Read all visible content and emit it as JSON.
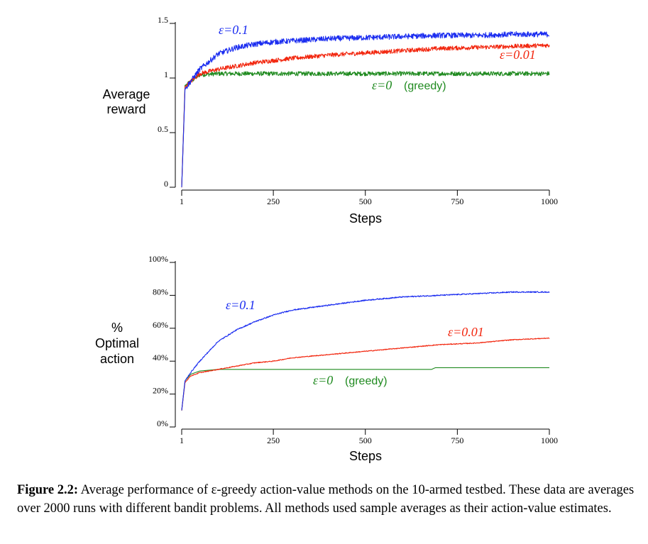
{
  "colors": {
    "eps_0_1": "#1a2cf0",
    "eps_0_01": "#f2260e",
    "eps_0": "#1f8a1f"
  },
  "chart_data": [
    {
      "type": "line",
      "ylabel": [
        "Average",
        "reward"
      ],
      "xlabel": "Steps",
      "xlim": [
        1,
        1000
      ],
      "ylim": [
        0,
        1.5
      ],
      "x_ticks": [
        "1",
        "250",
        "500",
        "750",
        "1000"
      ],
      "y_ticks": [
        "0",
        "0.5",
        "1",
        "1.5"
      ],
      "series": [
        {
          "name": "ε=0.1",
          "x": [
            1,
            10,
            50,
            100,
            150,
            200,
            250,
            300,
            400,
            500,
            600,
            700,
            800,
            900,
            1000
          ],
          "y": [
            0.0,
            0.9,
            1.08,
            1.22,
            1.28,
            1.31,
            1.33,
            1.34,
            1.36,
            1.37,
            1.38,
            1.39,
            1.39,
            1.4,
            1.4
          ]
        },
        {
          "name": "ε=0.01",
          "x": [
            1,
            10,
            50,
            100,
            150,
            200,
            250,
            300,
            400,
            500,
            600,
            700,
            800,
            900,
            1000
          ],
          "y": [
            0.0,
            0.92,
            1.04,
            1.08,
            1.11,
            1.14,
            1.16,
            1.18,
            1.21,
            1.23,
            1.25,
            1.27,
            1.28,
            1.29,
            1.3
          ]
        },
        {
          "name": "ε=0 (greedy)",
          "x": [
            1,
            10,
            50,
            100,
            200,
            300,
            500,
            700,
            900,
            1000
          ],
          "y": [
            0.0,
            0.93,
            1.03,
            1.04,
            1.04,
            1.04,
            1.04,
            1.04,
            1.04,
            1.04
          ]
        }
      ]
    },
    {
      "type": "line",
      "ylabel": [
        "%",
        "Optimal",
        "action"
      ],
      "xlabel": "Steps",
      "xlim": [
        1,
        1000
      ],
      "ylim": [
        0,
        100
      ],
      "x_ticks": [
        "1",
        "250",
        "500",
        "750",
        "1000"
      ],
      "y_ticks": [
        "0%",
        "20%",
        "40%",
        "60%",
        "80%",
        "100%"
      ],
      "series": [
        {
          "name": "ε=0.1",
          "x": [
            1,
            10,
            25,
            50,
            100,
            150,
            200,
            250,
            300,
            400,
            500,
            600,
            700,
            800,
            900,
            1000
          ],
          "y": [
            10,
            28,
            33,
            40,
            52,
            59,
            64,
            68,
            71,
            74,
            77,
            79,
            80,
            81,
            82,
            82
          ]
        },
        {
          "name": "ε=0.01",
          "x": [
            1,
            10,
            25,
            50,
            100,
            150,
            200,
            250,
            300,
            400,
            500,
            600,
            700,
            800,
            900,
            1000
          ],
          "y": [
            10,
            27,
            31,
            33,
            35,
            37,
            39,
            40,
            42,
            44,
            46,
            48,
            50,
            51,
            53,
            54
          ]
        },
        {
          "name": "ε=0 (greedy)",
          "x": [
            1,
            10,
            25,
            50,
            100,
            200,
            300,
            400,
            500,
            600,
            680,
            690,
            800,
            900,
            1000
          ],
          "y": [
            10,
            28,
            32,
            34,
            35,
            35,
            35,
            35,
            35,
            35,
            35,
            36,
            36,
            36,
            36
          ]
        }
      ]
    }
  ],
  "annotations": {
    "top_eps_0_1": "ε=0.1",
    "top_eps_0_01": "ε=0.01",
    "top_eps_0": "ε=0",
    "top_greedy": "(greedy)",
    "bot_eps_0_1": "ε=0.1",
    "bot_eps_0_01": "ε=0.01",
    "bot_eps_0": "ε=0",
    "bot_greedy": "(greedy)"
  },
  "caption": {
    "label": "Figure 2.2:",
    "text": "Average performance of ε-greedy action-value methods on the 10-armed testbed. These data are averages over 2000 runs with different bandit problems. All methods used sample averages as their action-value estimates."
  }
}
